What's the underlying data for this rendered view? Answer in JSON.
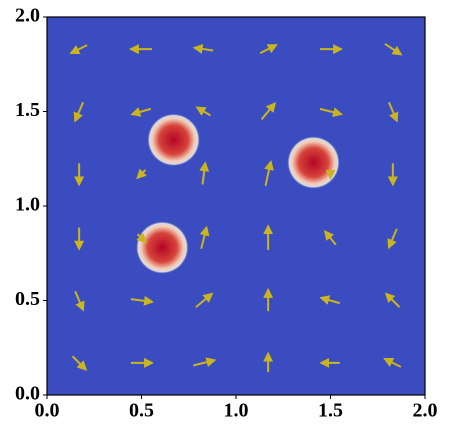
{
  "chart_data": {
    "type": "quiver",
    "xlim": [
      0,
      2
    ],
    "ylim": [
      0,
      2
    ],
    "xticks": [
      {
        "value": 0,
        "label": "0.0"
      },
      {
        "value": 0.5,
        "label": "0.5"
      },
      {
        "value": 1,
        "label": "1.0"
      },
      {
        "value": 1.5,
        "label": "1.5"
      },
      {
        "value": 2,
        "label": "2.0"
      }
    ],
    "yticks": [
      {
        "value": 0,
        "label": "0.0"
      },
      {
        "value": 0.5,
        "label": "0.5"
      },
      {
        "value": 1,
        "label": "1.0"
      },
      {
        "value": 1.5,
        "label": "1.5"
      },
      {
        "value": 2,
        "label": "2.0"
      }
    ],
    "background": "#3b4cc0",
    "blobs": {
      "color": "#b40426",
      "x": [
        0.67,
        0.61,
        1.41
      ],
      "y": [
        1.35,
        0.78,
        1.23
      ],
      "size": [
        0.14,
        0.14,
        0.14
      ]
    },
    "arrows": {
      "color": "#c9b51e",
      "x": [
        0.17,
        0.5,
        0.83,
        1.17,
        1.5,
        1.83,
        0.17,
        0.5,
        0.83,
        1.17,
        1.5,
        1.83,
        0.17,
        0.5,
        0.83,
        1.17,
        1.5,
        1.83,
        0.17,
        0.5,
        0.83,
        1.17,
        1.5,
        1.83,
        0.17,
        0.5,
        0.83,
        1.17,
        1.5,
        1.83,
        0.17,
        0.5,
        0.83,
        1.17,
        1.5,
        1.83
      ],
      "y": [
        0.17,
        0.17,
        0.17,
        0.17,
        0.17,
        0.17,
        0.5,
        0.5,
        0.5,
        0.5,
        0.5,
        0.5,
        0.83,
        0.83,
        0.83,
        0.83,
        0.83,
        0.83,
        1.17,
        1.17,
        1.17,
        1.17,
        1.17,
        1.17,
        1.5,
        1.5,
        1.5,
        1.5,
        1.5,
        1.5,
        1.83,
        1.83,
        1.83,
        1.83,
        1.83,
        1.83
      ],
      "u": [
        0.5,
        0.8,
        0.8,
        0,
        -0.7,
        -0.6,
        0.3,
        0.8,
        0.6,
        0,
        -0.7,
        -0.5,
        0,
        0.3,
        0.2,
        0,
        -0.4,
        -0.3,
        0,
        -0.3,
        0.1,
        0.2,
        0,
        0,
        -0.3,
        -0.7,
        -0.5,
        0.5,
        0.8,
        0.3,
        -0.6,
        -0.8,
        -0.7,
        0.6,
        0.8,
        0.6
      ],
      "v": [
        -0.5,
        0,
        0.2,
        0.7,
        0,
        0.3,
        -0.7,
        -0.1,
        0.5,
        0.8,
        0.2,
        0.5,
        -0.8,
        -0.3,
        0.8,
        0.9,
        0.5,
        -0.7,
        -0.8,
        -0.3,
        0.8,
        0.9,
        -0.3,
        -0.8,
        -0.7,
        -0.2,
        0.3,
        0.6,
        -0.2,
        -0.7,
        -0.3,
        0,
        0.1,
        0.3,
        0,
        -0.4
      ]
    }
  }
}
